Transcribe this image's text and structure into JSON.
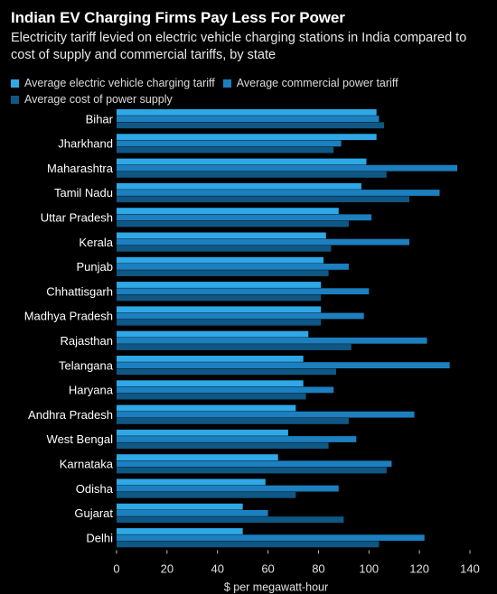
{
  "chart_data": {
    "type": "bar",
    "orientation": "horizontal",
    "title": "Indian EV Charging Firms Pay Less For Power",
    "subtitle": "Electricity tariff levied on electric vehicle charging stations in India compared to cost of supply and commercial tariffs, by state",
    "xlabel": "$ per megawatt-hour",
    "xlim": [
      0,
      140
    ],
    "xticks": [
      "0",
      "20",
      "40",
      "60",
      "80",
      "100",
      "120",
      "140"
    ],
    "xtick_values": [
      0,
      20,
      40,
      60,
      80,
      100,
      120,
      140
    ],
    "categories": [
      "Bihar",
      "Jharkhand",
      "Maharashtra",
      "Tamil Nadu",
      "Uttar Pradesh",
      "Kerala",
      "Punjab",
      "Chhattisgarh",
      "Madhya Pradesh",
      "Rajasthan",
      "Telangana",
      "Haryana",
      "Andhra Pradesh",
      "West Bengal",
      "Karnataka",
      "Odisha",
      "Gujarat",
      "Delhi"
    ],
    "series": [
      {
        "name": "Average electric vehicle charging tariff",
        "color": "#2ea8e6",
        "values": [
          103,
          103,
          99,
          97,
          88,
          83,
          82,
          81,
          81,
          76,
          74,
          74,
          71,
          68,
          64,
          59,
          50,
          50
        ]
      },
      {
        "name": "Average commercial power tariff",
        "color": "#1c7fbf",
        "values": [
          104,
          89,
          135,
          128,
          101,
          116,
          92,
          100,
          98,
          123,
          132,
          86,
          118,
          95,
          109,
          88,
          60,
          122
        ]
      },
      {
        "name": "Average cost of power supply",
        "color": "#0f5784",
        "values": [
          106,
          86,
          107,
          116,
          92,
          85,
          84,
          81,
          81,
          93,
          87,
          75,
          92,
          84,
          107,
          71,
          90,
          104
        ]
      }
    ],
    "legend_placement": "top-left",
    "grid": false
  }
}
